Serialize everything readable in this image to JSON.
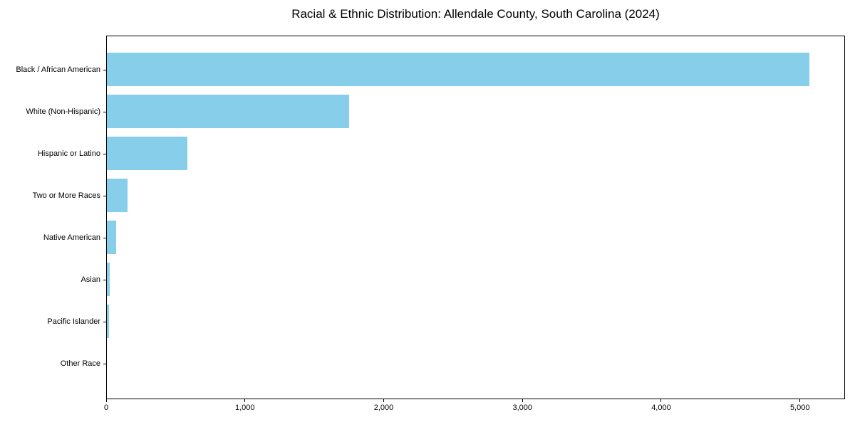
{
  "figure": {
    "title": "Racial & Ethnic Distribution: Allendale County, South Carolina (2024)"
  },
  "chart_data": {
    "type": "bar",
    "orientation": "horizontal",
    "title": "Racial & Ethnic Distribution: Allendale County, South Carolina (2024)",
    "categories": [
      "Black / African American",
      "White (Non-Hispanic)",
      "Hispanic or Latino",
      "Two or More Races",
      "Native American",
      "Asian",
      "Pacific Islander",
      "Other Race"
    ],
    "values": [
      5070,
      1750,
      585,
      155,
      70,
      25,
      18,
      0
    ],
    "xlabel": "",
    "ylabel": "",
    "xlim": [
      0,
      5325
    ],
    "xticks": [
      0,
      1000,
      2000,
      3000,
      4000,
      5000
    ],
    "xtick_labels": [
      "0",
      "1,000",
      "2,000",
      "3,000",
      "4,000",
      "5,000"
    ],
    "bar_color": "#87CEEB",
    "axis_color": "#000000",
    "text_color": "#000000",
    "background_color": "#ffffff",
    "grid": false,
    "legend_position": "none"
  }
}
